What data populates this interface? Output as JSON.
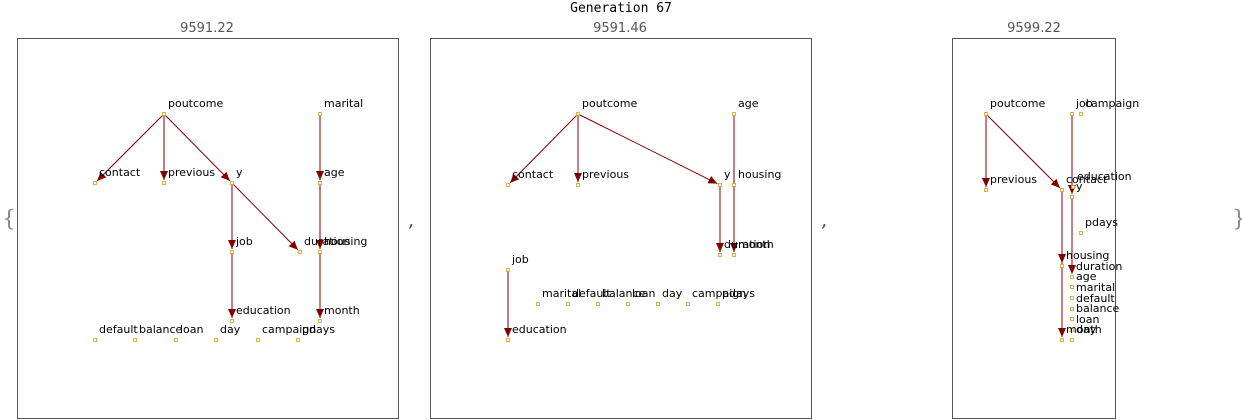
{
  "title": "Generation 67",
  "open_brace": "{",
  "close_brace": "}",
  "separator": ",",
  "colors": {
    "edge": "#800000",
    "node_stroke": "#d4a017",
    "frame": "#555555",
    "score": "#555555"
  },
  "panels": [
    {
      "score": "9591.22",
      "nodes": [
        "poutcome",
        "marital",
        "contact",
        "previous",
        "y",
        "age",
        "job",
        "duration",
        "housing",
        "education",
        "month",
        "default",
        "balance",
        "loan",
        "day",
        "campaign",
        "pdays"
      ],
      "edges": [
        [
          "poutcome",
          "contact"
        ],
        [
          "poutcome",
          "previous"
        ],
        [
          "poutcome",
          "y"
        ],
        [
          "y",
          "job"
        ],
        [
          "y",
          "duration"
        ],
        [
          "job",
          "education"
        ],
        [
          "marital",
          "age"
        ],
        [
          "age",
          "housing"
        ],
        [
          "housing",
          "month"
        ]
      ]
    },
    {
      "score": "9591.46",
      "nodes": [
        "poutcome",
        "age",
        "contact",
        "previous",
        "y",
        "housing",
        "duration",
        "month",
        "job",
        "marital",
        "default",
        "balance",
        "loan",
        "day",
        "campaign",
        "pdays",
        "education"
      ],
      "edges": [
        [
          "poutcome",
          "contact"
        ],
        [
          "poutcome",
          "previous"
        ],
        [
          "poutcome",
          "y"
        ],
        [
          "y",
          "duration"
        ],
        [
          "age",
          "month"
        ],
        [
          "job",
          "education"
        ]
      ]
    },
    {
      "score": "9599.22",
      "nodes": [
        "poutcome",
        "job",
        "campaign",
        "previous",
        "contact",
        "education",
        "y",
        "pdays",
        "housing",
        "duration",
        "age",
        "marital",
        "default",
        "balance",
        "loan",
        "month",
        "day"
      ],
      "edges": [
        [
          "poutcome",
          "previous"
        ],
        [
          "poutcome",
          "contact"
        ],
        [
          "job",
          "y"
        ],
        [
          "contact",
          "month"
        ],
        [
          "contact",
          "housing"
        ],
        [
          "y",
          "duration"
        ]
      ]
    }
  ]
}
